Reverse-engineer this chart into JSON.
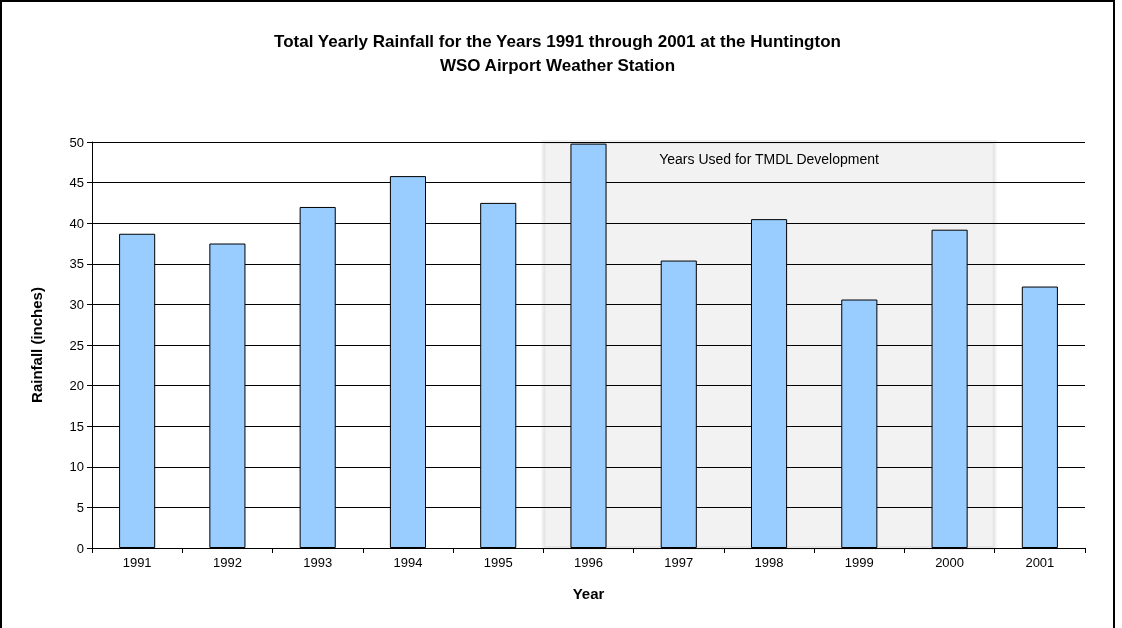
{
  "chart_data": {
    "type": "bar",
    "title": "Total Yearly Rainfall for the Years 1991 through 2001 at the Huntington\nWSO Airport Weather Station",
    "xlabel": "Year",
    "ylabel": "Rainfall (inches)",
    "categories": [
      "1991",
      "1992",
      "1993",
      "1994",
      "1995",
      "1996",
      "1997",
      "1998",
      "1999",
      "2000",
      "2001"
    ],
    "values": [
      38.7,
      37.5,
      42.0,
      45.8,
      42.5,
      49.8,
      35.4,
      40.5,
      30.6,
      39.2,
      32.2
    ],
    "color": "#99ccff",
    "ylim": [
      0,
      50
    ],
    "yticks": [
      0,
      5,
      10,
      15,
      20,
      25,
      30,
      35,
      40,
      45,
      50
    ],
    "grid": "y",
    "bands": [
      {
        "axis": "x",
        "from": "1996",
        "to": "2000",
        "label": "Years Used for TMDL Development",
        "color": "#000000"
      }
    ]
  }
}
